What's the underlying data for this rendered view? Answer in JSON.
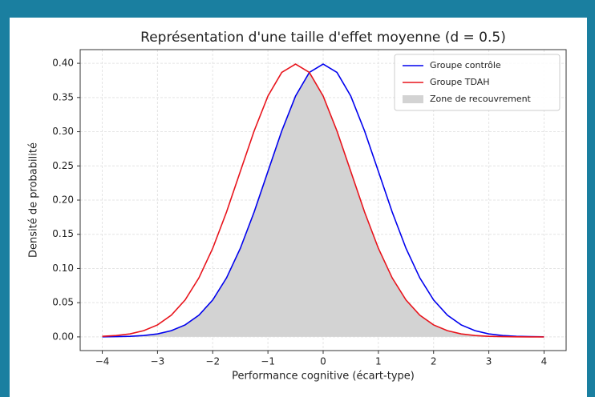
{
  "chart_data": {
    "type": "line",
    "title": "Représentation d'une taille d'effet moyenne (d = 0.5)",
    "xlabel": "Performance cognitive (écart-type)",
    "ylabel": "Densité de probabilité",
    "x": [
      -4,
      -3.75,
      -3.5,
      -3.25,
      -3,
      -2.75,
      -2.5,
      -2.25,
      -2,
      -1.75,
      -1.5,
      -1.25,
      -1,
      -0.75,
      -0.5,
      -0.25,
      0,
      0.25,
      0.5,
      0.75,
      1,
      1.25,
      1.5,
      1.75,
      2,
      2.25,
      2.5,
      2.75,
      3,
      3.25,
      3.5,
      3.75,
      4
    ],
    "series": [
      {
        "name": "Groupe contrôle",
        "color": "#0000ee",
        "values": [
          0.0001,
          0.0004,
          0.0009,
          0.002,
          0.0044,
          0.0091,
          0.0175,
          0.0317,
          0.054,
          0.0863,
          0.1295,
          0.1826,
          0.242,
          0.3011,
          0.3521,
          0.3867,
          0.3989,
          0.3867,
          0.3521,
          0.3011,
          0.242,
          0.1826,
          0.1295,
          0.0863,
          0.054,
          0.0317,
          0.0175,
          0.0091,
          0.0044,
          0.002,
          0.0009,
          0.0004,
          0.0001
        ]
      },
      {
        "name": "Groupe TDAH",
        "color": "#e8141c",
        "values": [
          0.0009,
          0.002,
          0.0044,
          0.0091,
          0.0175,
          0.0317,
          0.054,
          0.0863,
          0.1295,
          0.1826,
          0.242,
          0.3011,
          0.3521,
          0.3867,
          0.3989,
          0.3867,
          0.3521,
          0.3011,
          0.242,
          0.1826,
          0.1295,
          0.0863,
          0.054,
          0.0317,
          0.0175,
          0.0091,
          0.0044,
          0.002,
          0.0009,
          0.0004,
          0.0001,
          0,
          0
        ]
      }
    ],
    "area": {
      "name": "Zone de recouvrement",
      "color": "#d3d3d3",
      "values": [
        0.0001,
        0.0004,
        0.0009,
        0.002,
        0.0044,
        0.0091,
        0.0175,
        0.0317,
        0.054,
        0.0863,
        0.1295,
        0.1826,
        0.242,
        0.3011,
        0.3521,
        0.3867,
        0.3521,
        0.3011,
        0.242,
        0.1826,
        0.1295,
        0.0863,
        0.054,
        0.0317,
        0.0175,
        0.0091,
        0.0044,
        0.002,
        0.0009,
        0.0004,
        0.0001,
        0,
        0
      ]
    },
    "xlim": [
      -4.4,
      4.4
    ],
    "ylim": [
      -0.02,
      0.42
    ],
    "xticks": [
      {
        "value": -4,
        "label": "−4"
      },
      {
        "value": -3,
        "label": "−3"
      },
      {
        "value": -2,
        "label": "−2"
      },
      {
        "value": -1,
        "label": "−1"
      },
      0,
      1,
      2,
      3,
      4
    ],
    "yticks": [
      {
        "value": 0,
        "label": "0.00"
      },
      {
        "value": 0.05,
        "label": "0.05"
      },
      {
        "value": 0.1,
        "label": "0.10"
      },
      {
        "value": 0.15,
        "label": "0.15"
      },
      {
        "value": 0.2,
        "label": "0.20"
      },
      {
        "value": 0.25,
        "label": "0.25"
      },
      {
        "value": 0.3,
        "label": "0.30"
      },
      {
        "value": 0.35,
        "label": "0.35"
      },
      {
        "value": 0.4,
        "label": "0.40"
      }
    ],
    "grid": true,
    "legend": "upper right"
  }
}
